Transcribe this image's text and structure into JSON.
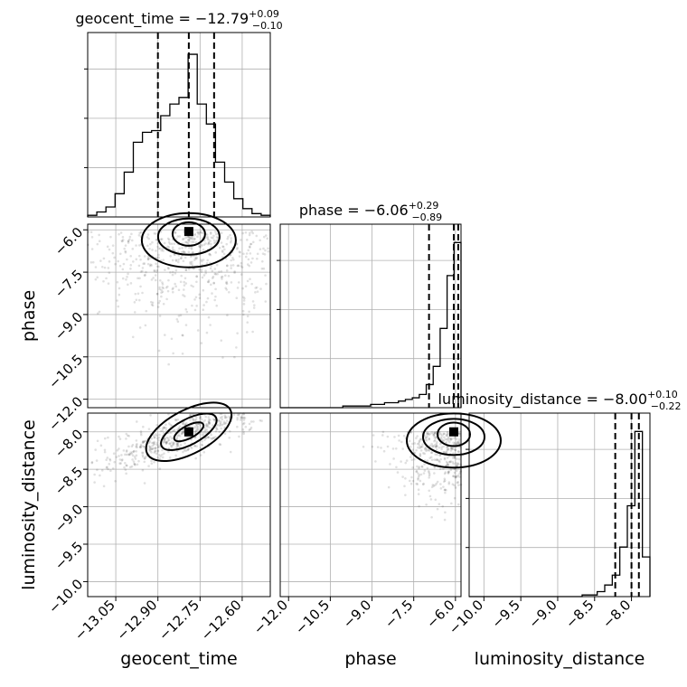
{
  "chart_data": {
    "type": "corner",
    "parameters": [
      {
        "name": "geocent_time",
        "axis_label": "geocent_time",
        "median": -12.79,
        "upper_error": 0.09,
        "lower_error": 0.1,
        "title_text": "geocent_time = −12.79",
        "title_sup": "+0.09",
        "title_sub": "−0.10",
        "range": [
          -13.15,
          -12.5
        ],
        "ticks": [
          -13.05,
          -12.9,
          -12.75,
          -12.6
        ],
        "tick_labels": [
          "−13.05",
          "−12.90",
          "−12.75",
          "−12.60"
        ],
        "quantiles": [
          -12.9,
          -12.79,
          -12.7
        ],
        "hist_heights": [
          0.01,
          0.03,
          0.06,
          0.14,
          0.27,
          0.45,
          0.51,
          0.52,
          0.61,
          0.68,
          0.72,
          0.98,
          0.68,
          0.56,
          0.33,
          0.21,
          0.11,
          0.05,
          0.02,
          0.01
        ]
      },
      {
        "name": "phase",
        "axis_label": "phase",
        "median": -6.06,
        "upper_error": 0.29,
        "lower_error": 0.89,
        "title_text": "phase = −6.06",
        "title_sup": "+0.29",
        "title_sub": "−0.89",
        "range": [
          -12.3,
          -5.8
        ],
        "ticks": [
          -12.0,
          -10.5,
          -9.0,
          -7.5,
          -6.0
        ],
        "tick_labels": [
          "−12.0",
          "−10.5",
          "−9.0",
          "−7.5",
          "−6.0"
        ],
        "quantiles": [
          -6.95,
          -6.06,
          -5.9
        ],
        "hist_heights": [
          0.0,
          0.0,
          0.0,
          0.0,
          0.0,
          0.0,
          0.0,
          0.0,
          0.0,
          0.01,
          0.01,
          0.01,
          0.01,
          0.02,
          0.02,
          0.03,
          0.03,
          0.04,
          0.05,
          0.06,
          0.08,
          0.14,
          0.25,
          0.48,
          0.8,
          1.0
        ]
      },
      {
        "name": "luminosity_distance",
        "axis_label": "luminosity_distance",
        "median": -8.0,
        "upper_error": 0.1,
        "lower_error": 0.22,
        "title_text": "luminosity_distance = −8.00",
        "title_sup": "+0.10",
        "title_sub": "−0.22",
        "range": [
          -10.2,
          -7.75
        ],
        "ticks": [
          -10.0,
          -9.5,
          -9.0,
          -8.5,
          -8.0
        ],
        "tick_labels": [
          "−10.0",
          "−9.5",
          "−9.0",
          "−8.5",
          "−8.0"
        ],
        "quantiles": [
          -8.22,
          -8.0,
          -7.9
        ],
        "hist_heights": [
          0.0,
          0.0,
          0.0,
          0.0,
          0.0,
          0.0,
          0.0,
          0.0,
          0.0,
          0.0,
          0.0,
          0.0,
          0.0,
          0.0,
          0.0,
          0.01,
          0.01,
          0.03,
          0.07,
          0.13,
          0.3,
          0.55,
          1.0,
          0.24
        ]
      }
    ],
    "grid": true
  }
}
